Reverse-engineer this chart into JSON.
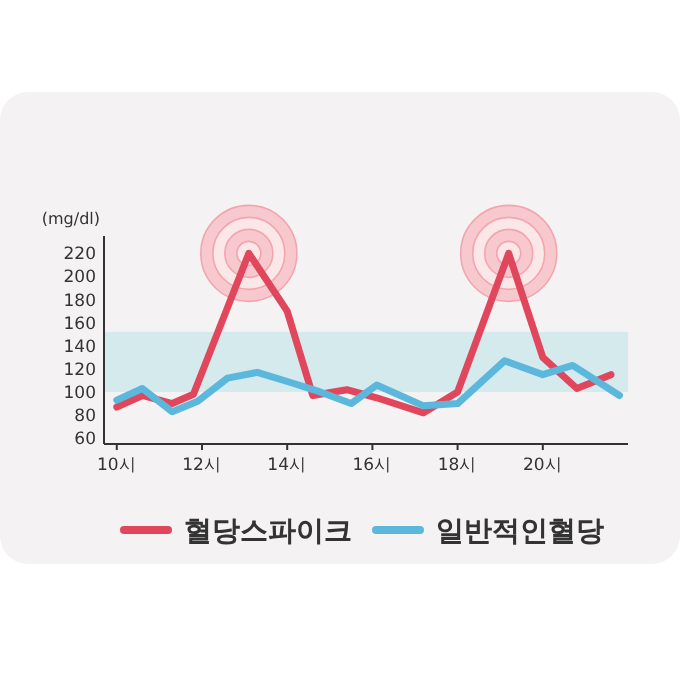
{
  "chart_data": {
    "type": "line",
    "ylabel": "(mg/dl)",
    "xlim": [
      9.7,
      22
    ],
    "xticks": [
      {
        "value": 10,
        "label": "10시"
      },
      {
        "value": 12,
        "label": "12시"
      },
      {
        "value": 14,
        "label": "14시"
      },
      {
        "value": 16,
        "label": "16시"
      },
      {
        "value": 18,
        "label": "18시"
      },
      {
        "value": 20,
        "label": "20시"
      }
    ],
    "ylim": [
      55,
      235
    ],
    "yticks": [
      60,
      80,
      100,
      120,
      140,
      160,
      180,
      200,
      220
    ],
    "series": [
      {
        "name": "혈당스파이크",
        "color": "#e0475c",
        "x": [
          10,
          10.6,
          11.3,
          11.8,
          13.1,
          14,
          14.6,
          15.4,
          16.1,
          17.2,
          18,
          19.2,
          20,
          20.8,
          21.6
        ],
        "values": [
          87,
          97,
          90,
          98,
          220,
          170,
          97,
          102,
          95,
          82,
          100,
          220,
          130,
          103,
          115
        ]
      },
      {
        "name": "일반적인혈당",
        "color": "#5bb8dc",
        "x": [
          10,
          10.6,
          11.3,
          11.9,
          12.6,
          13.3,
          14.1,
          14.7,
          15.5,
          16.1,
          17.2,
          18,
          19.1,
          20,
          20.7,
          21.8
        ],
        "values": [
          93,
          103,
          83,
          92,
          112,
          117,
          108,
          101,
          90,
          106,
          88,
          90,
          127,
          115,
          123,
          97
        ]
      }
    ],
    "bands": [
      {
        "axis": "y",
        "from": 100,
        "to": 152,
        "color": "#cfe9ec"
      }
    ],
    "legend": "bottom",
    "grid": false,
    "marker": "none",
    "line_style": "solid"
  }
}
